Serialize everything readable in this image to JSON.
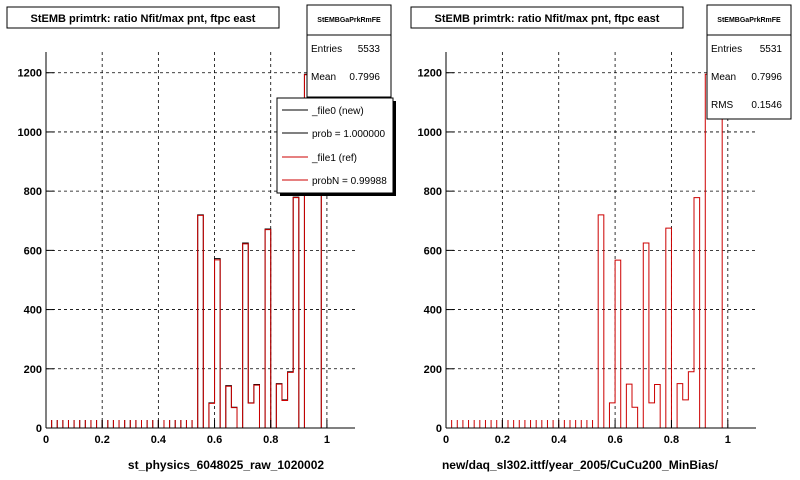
{
  "chart_data": [
    {
      "type": "bar",
      "title": "StEMB primtrk: ratio Nfit/max pnt, ftpc east",
      "xlabel": "st_physics_6048025_raw_1020002",
      "ylabel": "",
      "xlim": [
        0,
        1.1
      ],
      "ylim": [
        0,
        1270
      ],
      "x_ticks": [
        "0",
        "0.2",
        "0.4",
        "0.6",
        "0.8",
        "1"
      ],
      "y_ticks": [
        "0",
        "200",
        "400",
        "600",
        "800",
        "1000",
        "1200"
      ],
      "grid": true,
      "legend_position": "top-right",
      "stats": {
        "header": "StEMBGaPrkRmFE",
        "rows": [
          {
            "label": "Entries",
            "value": "5533"
          },
          {
            "label": "Mean",
            "value": "0.7996"
          }
        ]
      },
      "legend": [
        {
          "label": "_file0 (new)",
          "color": "#000000"
        },
        {
          "label": "prob = 1.000000",
          "color": "#000000"
        },
        {
          "label": "_file1 (ref)",
          "color": "#cc0000"
        },
        {
          "label": "probN = 0.99988",
          "color": "#cc0000"
        }
      ],
      "bin_width": 0.02,
      "series": [
        {
          "color": "#000000",
          "bin_edges": [
            0.54,
            0.56,
            0.58,
            0.6,
            0.62,
            0.64,
            0.66,
            0.68,
            0.7,
            0.72,
            0.74,
            0.76,
            0.78,
            0.8,
            0.82,
            0.84,
            0.86,
            0.88,
            0.9,
            0.92,
            0.98
          ],
          "values": [
            720,
            0,
            85,
            572,
            0,
            143,
            70,
            0,
            625,
            85,
            147,
            0,
            672,
            0,
            150,
            95,
            190,
            780,
            0,
            1195
          ]
        },
        {
          "color": "#cc0000",
          "bin_edges": [
            0.54,
            0.56,
            0.58,
            0.6,
            0.62,
            0.64,
            0.66,
            0.68,
            0.7,
            0.72,
            0.74,
            0.76,
            0.78,
            0.8,
            0.82,
            0.84,
            0.86,
            0.88,
            0.9,
            0.92,
            0.98
          ],
          "values": [
            718,
            0,
            83,
            568,
            0,
            141,
            69,
            0,
            622,
            84,
            145,
            0,
            670,
            0,
            148,
            93,
            188,
            778,
            0,
            1193
          ]
        }
      ]
    },
    {
      "type": "bar",
      "title": "StEMB primtrk: ratio Nfit/max pnt, ftpc east",
      "xlabel": "new/daq_sl302.ittf/year_2005/CuCu200_MinBias/",
      "ylabel": "",
      "xlim": [
        0,
        1.1
      ],
      "ylim": [
        0,
        1270
      ],
      "x_ticks": [
        "0",
        "0.2",
        "0.4",
        "0.6",
        "0.8",
        "1"
      ],
      "y_ticks": [
        "0",
        "200",
        "400",
        "600",
        "800",
        "1000",
        "1200"
      ],
      "grid": true,
      "stats": {
        "header": "StEMBGaPrkRmFE",
        "rows": [
          {
            "label": "Entries",
            "value": "5531"
          },
          {
            "label": "Mean",
            "value": "0.7996"
          },
          {
            "label": "RMS",
            "value": "0.1546"
          }
        ]
      },
      "bin_width": 0.02,
      "series": [
        {
          "color": "#cc0000",
          "bin_edges": [
            0.54,
            0.56,
            0.58,
            0.6,
            0.62,
            0.64,
            0.66,
            0.68,
            0.7,
            0.72,
            0.74,
            0.76,
            0.78,
            0.8,
            0.82,
            0.84,
            0.86,
            0.88,
            0.9,
            0.92,
            0.98
          ],
          "values": [
            720,
            0,
            85,
            567,
            0,
            148,
            70,
            0,
            625,
            85,
            147,
            0,
            675,
            0,
            150,
            95,
            190,
            778,
            0,
            1195
          ]
        }
      ]
    }
  ]
}
